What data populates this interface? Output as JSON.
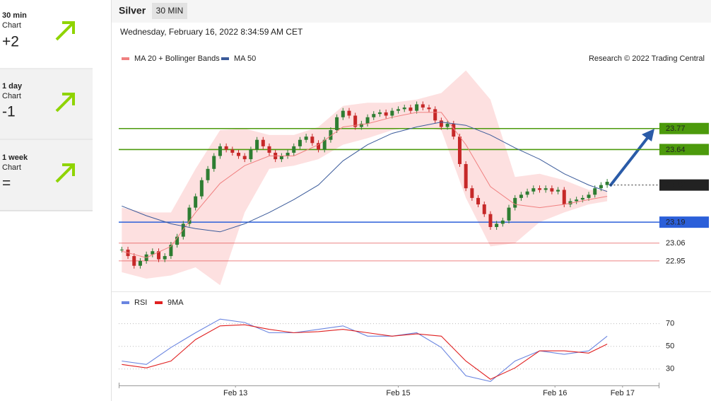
{
  "sidebar": [
    {
      "period": "30 min",
      "label": "Chart",
      "signal": "+2"
    },
    {
      "period": "1 day",
      "label": "Chart",
      "signal": "-1"
    },
    {
      "period": "1 week",
      "label": "Chart",
      "signal": "="
    }
  ],
  "header": {
    "title": "Silver",
    "interval": "30 MIN",
    "date": "Wednesday, February 16, 2022 8:34:59 AM CET"
  },
  "credit": "Research © 2022 Trading Central",
  "chart_data": [
    {
      "type": "candlestick",
      "xlim": [
        -0.5,
        87.5
      ],
      "ylim": [
        22.77,
        24.15
      ],
      "up_color": "#2e7d32",
      "down_color": "#c62828",
      "values": [
        23.02,
        22.98,
        22.92,
        22.95,
        22.99,
        23.01,
        22.96,
        22.98,
        23.05,
        23.1,
        23.18,
        23.28,
        23.35,
        23.45,
        23.52,
        23.6,
        23.66,
        23.64,
        23.62,
        23.6,
        23.58,
        23.64,
        23.7,
        23.66,
        23.62,
        23.58,
        23.6,
        23.62,
        23.66,
        23.7,
        23.72,
        23.68,
        23.64,
        23.7,
        23.76,
        23.84,
        23.88,
        23.85,
        23.78,
        23.8,
        23.84,
        23.86,
        23.87,
        23.85,
        23.88,
        23.89,
        23.9,
        23.88,
        23.92,
        23.9,
        23.89,
        23.82,
        23.78,
        23.8,
        23.72,
        23.55,
        23.4,
        23.34,
        23.3,
        23.24,
        23.16,
        23.18,
        23.2,
        23.28,
        23.34,
        23.36,
        23.38,
        23.4,
        23.39,
        23.4,
        23.38,
        23.39,
        23.3,
        23.32,
        23.33,
        23.34,
        23.36,
        23.4,
        23.42,
        23.44
      ],
      "series": [
        {
          "name": "MA 20 + Bollinger Bands",
          "color": "#f08080",
          "band_color": "#fde0e0",
          "x": [
            0,
            4,
            8,
            12,
            16,
            20,
            24,
            28,
            32,
            36,
            40,
            44,
            48,
            52,
            56,
            60,
            64,
            68,
            72,
            76,
            79
          ],
          "values": [
            23.01,
            22.97,
            23.04,
            23.25,
            23.43,
            23.54,
            23.6,
            23.6,
            23.67,
            23.78,
            23.8,
            23.84,
            23.87,
            23.87,
            23.67,
            23.41,
            23.3,
            23.28,
            23.3,
            23.33,
            23.35
          ],
          "upper": [
            23.28,
            23.25,
            23.25,
            23.52,
            23.76,
            23.77,
            23.73,
            23.73,
            23.78,
            23.91,
            23.93,
            23.93,
            23.95,
            23.99,
            24.13,
            23.95,
            23.47,
            23.49,
            23.45,
            23.39,
            23.39
          ],
          "lower": [
            22.88,
            22.84,
            22.86,
            22.91,
            22.8,
            23.25,
            23.52,
            23.54,
            23.58,
            23.67,
            23.71,
            23.76,
            23.78,
            23.76,
            23.34,
            23.04,
            23.06,
            23.19,
            23.25,
            23.3,
            23.32
          ]
        },
        {
          "name": "MA 50",
          "color": "#3a5a9a",
          "x": [
            0,
            4,
            8,
            12,
            16,
            20,
            24,
            28,
            32,
            36,
            40,
            44,
            48,
            52,
            56,
            60,
            64,
            68,
            72,
            76,
            79
          ],
          "values": [
            23.29,
            23.23,
            23.18,
            23.15,
            23.13,
            23.18,
            23.25,
            23.33,
            23.42,
            23.57,
            23.67,
            23.74,
            23.78,
            23.81,
            23.79,
            23.73,
            23.65,
            23.58,
            23.49,
            23.42,
            23.38
          ]
        }
      ],
      "levels": [
        {
          "value": 23.77,
          "color": "#4c9a0c",
          "style": "box",
          "dashed": false
        },
        {
          "value": 23.64,
          "color": "#4c9a0c",
          "style": "box",
          "dashed": false
        },
        {
          "value": 23.42,
          "color": "#222222",
          "style": "box",
          "dashed": true
        },
        {
          "value": 23.19,
          "color": "#2b5fd9",
          "style": "box",
          "dashed": false
        },
        {
          "value": 23.06,
          "color": "#e03030",
          "style": "text",
          "dashed": false
        },
        {
          "value": 22.95,
          "color": "#e03030",
          "style": "text",
          "dashed": false
        }
      ]
    },
    {
      "type": "line",
      "xlim": [
        -0.5,
        87.5
      ],
      "xticks": [
        {
          "value": 18.5,
          "label": "Feb 13"
        },
        {
          "value": 45,
          "label": "Feb 15"
        },
        {
          "value": 70.5,
          "label": "Feb 16"
        },
        {
          "value": 81.5,
          "label": "Feb 17"
        }
      ],
      "ylim": [
        18,
        81
      ],
      "yticks": [
        30,
        50,
        70
      ],
      "grid": true,
      "series": [
        {
          "name": "RSI",
          "color": "#6a85e0",
          "x": [
            0,
            4,
            8,
            12,
            16,
            20,
            24,
            28,
            32,
            36,
            40,
            44,
            48,
            52,
            56,
            60,
            64,
            68,
            72,
            76,
            79
          ],
          "values": [
            37,
            34,
            49,
            62,
            74,
            71,
            62,
            62,
            65,
            68,
            59,
            59,
            62,
            49,
            24,
            19,
            37,
            46,
            43,
            46,
            59
          ]
        },
        {
          "name": "9MA",
          "color": "#e02020",
          "x": [
            0,
            4,
            8,
            12,
            16,
            20,
            24,
            28,
            32,
            36,
            40,
            44,
            48,
            52,
            56,
            60,
            64,
            68,
            72,
            76,
            79
          ],
          "values": [
            34,
            31,
            37,
            56,
            68,
            69,
            65,
            62,
            63,
            65,
            62,
            59,
            61,
            59,
            37,
            21,
            31,
            46,
            46,
            44,
            52
          ]
        }
      ]
    }
  ]
}
